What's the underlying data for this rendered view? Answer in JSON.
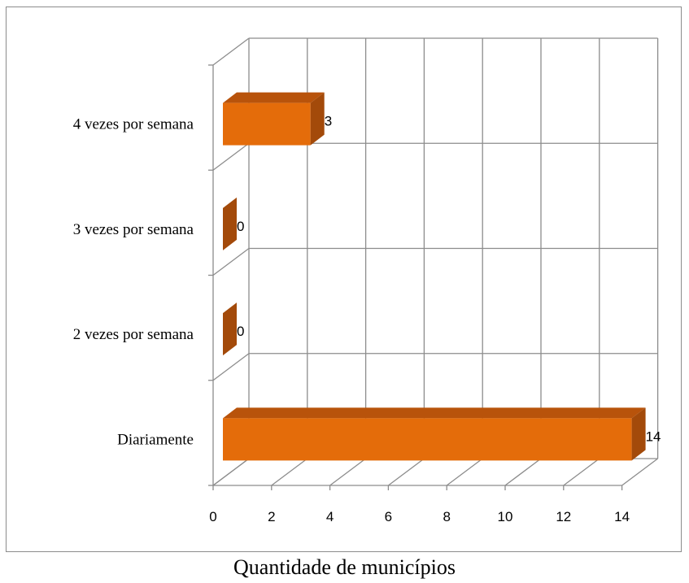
{
  "chart_data": {
    "type": "bar",
    "orientation": "horizontal",
    "style": "3d",
    "categories": [
      "Diariamente",
      "2 vezes por semana",
      "3 vezes por semana",
      "4 vezes por semana"
    ],
    "values": [
      14,
      0,
      0,
      3
    ],
    "data_labels": [
      "14",
      "0",
      "0",
      "3"
    ],
    "xlabel": "Quantidade de municípios",
    "xlim": [
      0,
      14
    ],
    "x_ticks": [
      "0",
      "2",
      "4",
      "6",
      "8",
      "10",
      "12",
      "14"
    ],
    "grid": true,
    "legend": "none",
    "colors": {
      "bar_front": "#E46C0A",
      "bar_side": "#A34A0A",
      "bar_top": "#B8530B",
      "grid": "#8c8c8c"
    }
  }
}
